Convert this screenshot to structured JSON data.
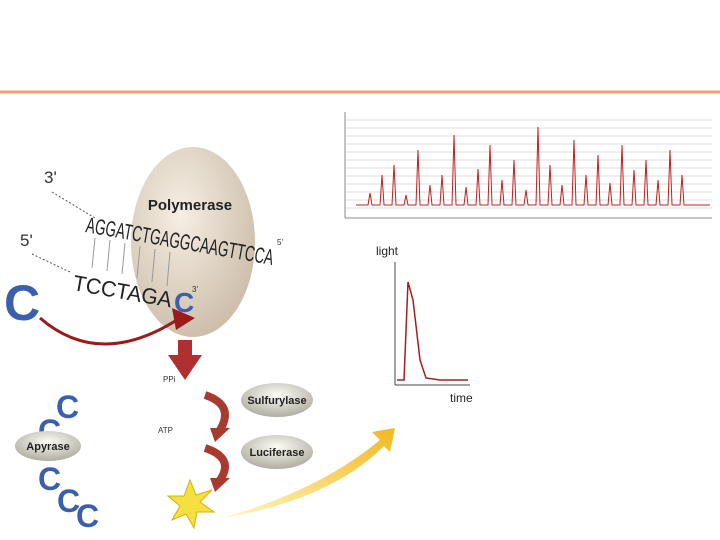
{
  "strands": {
    "top_end": "3'",
    "top_sequence": "AGGATCTGAGGCAAGTTCCA",
    "top_sequence_end": "5'",
    "bottom_end": "5'",
    "bottom_sequence": "TCCTAGA",
    "added_base": "C",
    "bottom_sequence_end": "3'"
  },
  "enzymes": {
    "polymerase": "Polymerase",
    "sulfurylase": "Sulfurylase",
    "luciferase": "Luciferase",
    "apyrase": "Apyrase"
  },
  "molecules": {
    "ppi": "PPi",
    "atp": "ATP",
    "incoming_base": "C",
    "apyrase_bases": [
      "C",
      "C",
      "C",
      "C",
      "C"
    ]
  },
  "signal": {
    "y_label": "light",
    "x_label": "time"
  }
}
